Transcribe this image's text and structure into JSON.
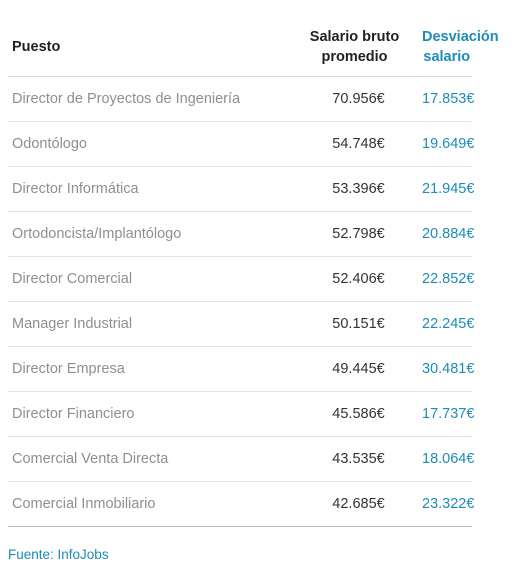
{
  "header": {
    "puesto": "Puesto",
    "salario_line1": "Salario bruto",
    "salario_line2": "promedio",
    "desviacion_line1": "Desviación",
    "desviacion_line2": "salario"
  },
  "rows": [
    {
      "puesto": "Director de Proyectos de Ingeniería",
      "salario": "70.956€",
      "desviacion": "17.853€"
    },
    {
      "puesto": "Odontólogo",
      "salario": "54.748€",
      "desviacion": "19.649€"
    },
    {
      "puesto": "Director Informática",
      "salario": "53.396€",
      "desviacion": "21.945€"
    },
    {
      "puesto": "Ortodoncista/Implantólogo",
      "salario": "52.798€",
      "desviacion": "20.884€"
    },
    {
      "puesto": "Director Comercial",
      "salario": "52.406€",
      "desviacion": "22.852€"
    },
    {
      "puesto": "Manager Industrial",
      "salario": "50.151€",
      "desviacion": "22.245€"
    },
    {
      "puesto": "Director Empresa",
      "salario": "49.445€",
      "desviacion": "30.481€"
    },
    {
      "puesto": "Director Financiero",
      "salario": "45.586€",
      "desviacion": "17.737€"
    },
    {
      "puesto": "Comercial Venta Directa",
      "salario": "43.535€",
      "desviacion": "18.064€"
    },
    {
      "puesto": "Comercial Inmobiliario",
      "salario": "42.685€",
      "desviacion": "23.322€"
    }
  ],
  "source": "Fuente: InfoJobs",
  "colors": {
    "accent": "#1e8cb5",
    "job_text": "#8f8f8f",
    "salary_text": "#333333"
  }
}
